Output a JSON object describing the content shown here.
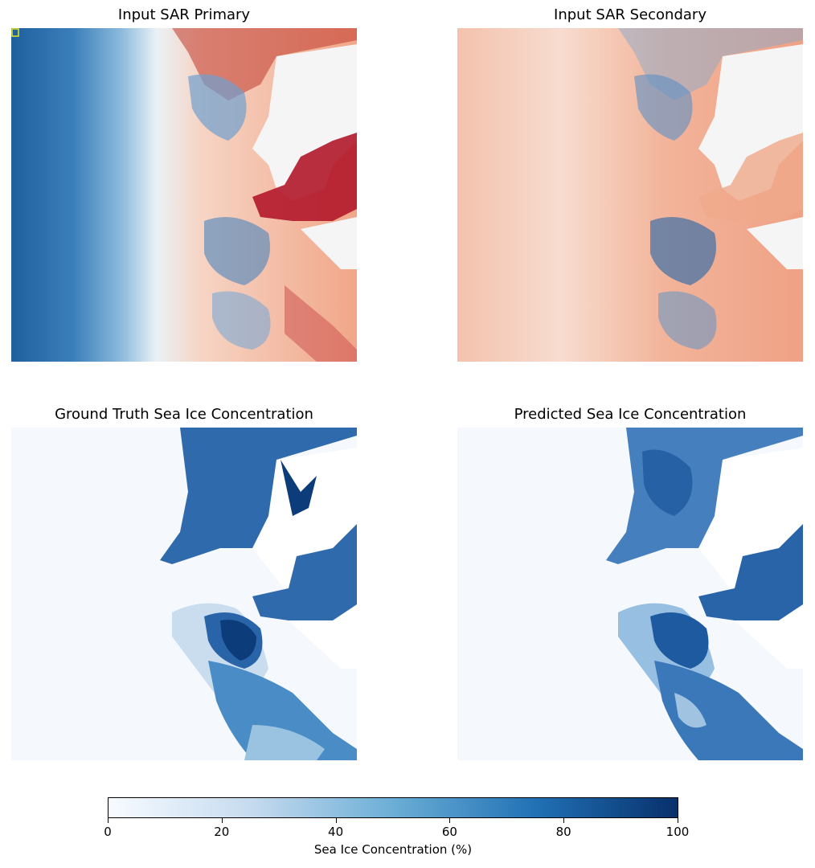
{
  "panels": {
    "sar_primary": {
      "title": "Input SAR Primary"
    },
    "sar_secondary": {
      "title": "Input SAR Secondary"
    },
    "ground_truth": {
      "title": "Ground Truth Sea Ice Concentration"
    },
    "predicted": {
      "title": "Predicted Sea Ice Concentration"
    }
  },
  "colorbar": {
    "label": "Sea Ice Concentration (%)",
    "ticks": [
      "0",
      "20",
      "40",
      "60",
      "80",
      "100"
    ],
    "range": [
      0,
      100
    ],
    "colormap": "Blues",
    "colors": [
      "#f7fbff",
      "#c6dbef",
      "#6baed6",
      "#2171b5",
      "#08306b"
    ]
  },
  "colors": {
    "sar_low": "#1f5f9e",
    "sar_high": "#b2182b",
    "sar_mid": "#f4ece8",
    "land_mask": "#f5f5f5"
  }
}
